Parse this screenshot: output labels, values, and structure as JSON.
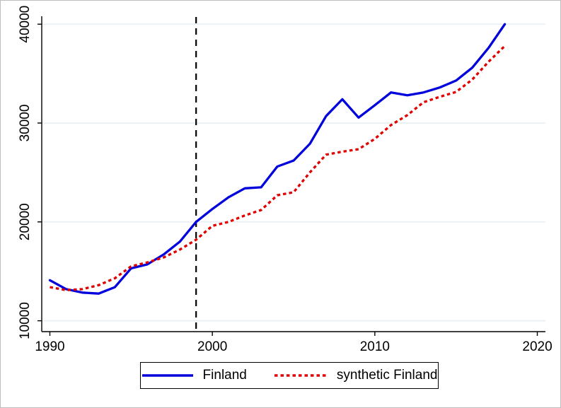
{
  "figure": {
    "background": "#ffffff",
    "border_color": "#bdbdbd"
  },
  "legend": {
    "items": [
      {
        "label": "Finland"
      },
      {
        "label": "synthetic Finland"
      }
    ]
  },
  "chart_data": {
    "type": "line",
    "title": "",
    "xlabel": "",
    "ylabel": "",
    "x": [
      1990,
      1991,
      1992,
      1993,
      1994,
      1995,
      1996,
      1997,
      1998,
      1999,
      2000,
      2001,
      2002,
      2003,
      2004,
      2005,
      2006,
      2007,
      2008,
      2009,
      2010,
      2011,
      2012,
      2013,
      2014,
      2015,
      2016,
      2017,
      2018
    ],
    "series": [
      {
        "name": "Finland",
        "color": "#0000dd",
        "dash": "solid",
        "values": [
          14100,
          13200,
          12850,
          12750,
          13400,
          15300,
          15700,
          16700,
          18000,
          20000,
          21300,
          22500,
          23400,
          23500,
          25600,
          26200,
          27900,
          30700,
          32400,
          30550,
          31800,
          33100,
          32800,
          33100,
          33600,
          34300,
          35600,
          37600,
          40000
        ]
      },
      {
        "name": "synthetic Finland",
        "color": "#e00000",
        "dash": "dotted",
        "values": [
          13400,
          13100,
          13200,
          13600,
          14300,
          15500,
          15900,
          16400,
          17200,
          18200,
          19600,
          20000,
          20650,
          21200,
          22700,
          23000,
          25000,
          26800,
          27100,
          27350,
          28400,
          29800,
          30800,
          32100,
          32650,
          33150,
          34400,
          36200,
          37800
        ]
      }
    ],
    "treatment_line": {
      "x": 1999,
      "style": "dashed",
      "color": "#000000"
    },
    "xlim": [
      1989.5,
      2020.5
    ],
    "ylim": [
      8900,
      40800
    ],
    "xticks": [
      1990,
      2000,
      2010,
      2020
    ],
    "yticks": [
      10000,
      20000,
      30000,
      40000
    ],
    "ytick_label_angle": 90,
    "grid": "horizontal",
    "gridline_color": "#e9eff5",
    "axis_color": "#000000",
    "legend_position": "bottom-center"
  }
}
